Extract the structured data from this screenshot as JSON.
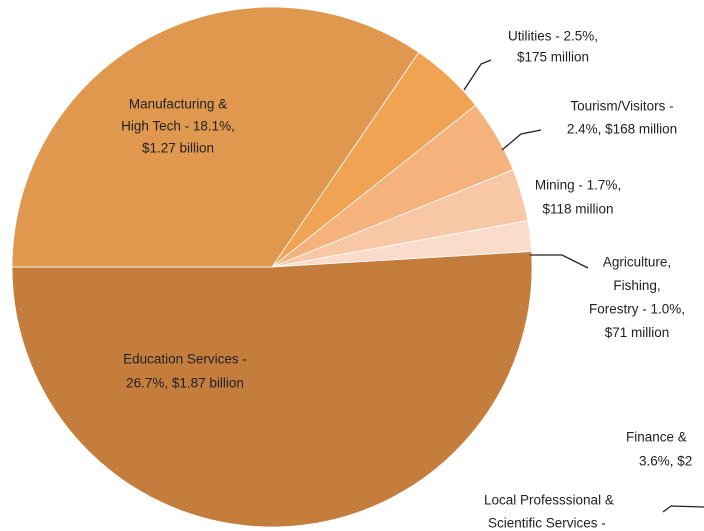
{
  "chart_data": {
    "type": "pie",
    "labels": [
      [
        "Education Services -",
        "26.7%, $1.87 billion"
      ],
      [
        "Agriculture,",
        "Fishing,",
        "Forestry - 1.0%,",
        "$71 million"
      ],
      [
        "Mining - 1.7%,",
        "$118 million"
      ],
      [
        "Tourism/Visitors -",
        "2.4%, $168 million"
      ],
      [
        "Utilities - 2.5%,",
        "$175 million"
      ],
      [
        "Manufacturing &",
        "High Tech - 18.1%,",
        "$1.27 billion"
      ]
    ],
    "values": [
      26.7,
      1.0,
      1.7,
      2.4,
      2.5,
      18.1
    ],
    "colors": [
      "#c47d3d",
      "#fbdcca",
      "#f8c8a6",
      "#f5b27c",
      "#f0a352",
      "#e0984f"
    ],
    "other_labels": [
      [
        "Finance &",
        "3.6%, $2"
      ],
      [
        "Local Professsional &",
        "Scientific Services -"
      ]
    ]
  }
}
